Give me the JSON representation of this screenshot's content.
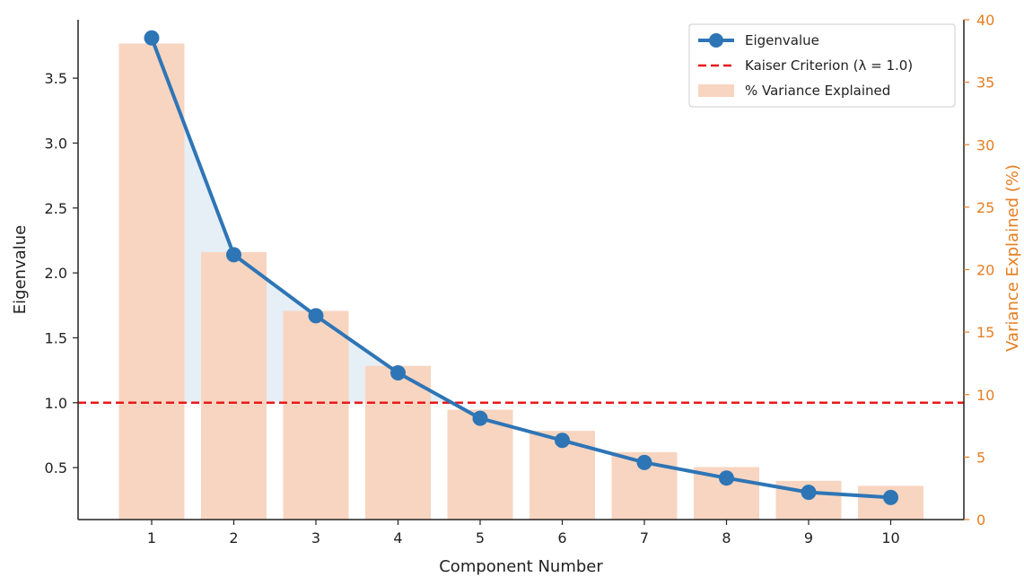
{
  "chart_data": {
    "type": "bar+line",
    "title": "",
    "categories": [
      "1",
      "2",
      "3",
      "4",
      "5",
      "6",
      "7",
      "8",
      "9",
      "10"
    ],
    "xlabel": "Component Number",
    "ylabel": "Eigenvalue",
    "ylabel_right": "Variance Explained (%)",
    "ylim": [
      0.1,
      3.95
    ],
    "ylim_right": [
      0,
      40
    ],
    "yticks": [
      "0.5",
      "1.0",
      "1.5",
      "2.0",
      "2.5",
      "3.0",
      "3.5"
    ],
    "yticks_right": [
      "0",
      "5",
      "10",
      "15",
      "20",
      "25",
      "30",
      "35",
      "40"
    ],
    "series": [
      {
        "name": "Eigenvalue",
        "kind": "line",
        "axis": "left",
        "color": "#2e75b6",
        "values": [
          3.81,
          2.14,
          1.67,
          1.23,
          0.88,
          0.71,
          0.54,
          0.42,
          0.31,
          0.27
        ]
      },
      {
        "name": "% Variance Explained",
        "kind": "bar",
        "axis": "right",
        "color": "#f8d5c0",
        "values": [
          38.1,
          21.4,
          16.7,
          12.3,
          8.8,
          7.1,
          5.4,
          4.2,
          3.1,
          2.7
        ]
      }
    ],
    "reference_line": {
      "name": "Kaiser Criterion (λ = 1.0)",
      "value": 1.0,
      "axis": "left",
      "color": "#e8191b"
    },
    "legend_position": "top-right",
    "grid": false
  }
}
